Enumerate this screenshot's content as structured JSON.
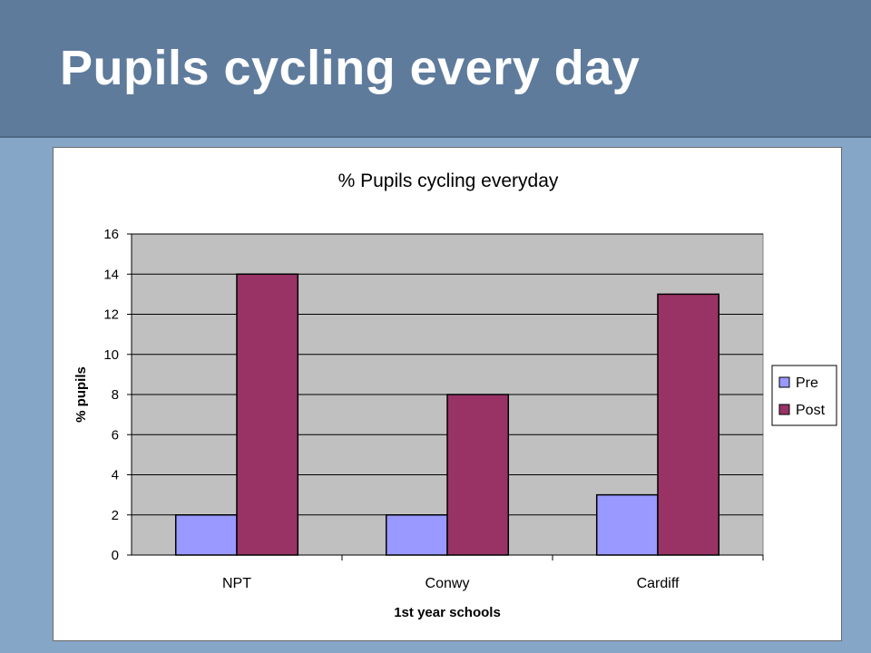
{
  "slide": {
    "title": "Pupils cycling every day"
  },
  "colors": {
    "pre": "#9999ff",
    "post": "#993366",
    "plot_bg": "#c0c0c0"
  },
  "chart_data": {
    "type": "bar",
    "title": "% Pupils cycling everyday",
    "xlabel": "1st year schools",
    "ylabel": "% pupils",
    "categories": [
      "NPT",
      "Conwy",
      "Cardiff"
    ],
    "series": [
      {
        "name": "Pre",
        "values": [
          2,
          2,
          3
        ]
      },
      {
        "name": "Post",
        "values": [
          14,
          8,
          13
        ]
      }
    ],
    "ylim": [
      0,
      16
    ],
    "yticks": [
      0,
      2,
      4,
      6,
      8,
      10,
      12,
      14,
      16
    ],
    "grid": true,
    "legend": "right"
  }
}
